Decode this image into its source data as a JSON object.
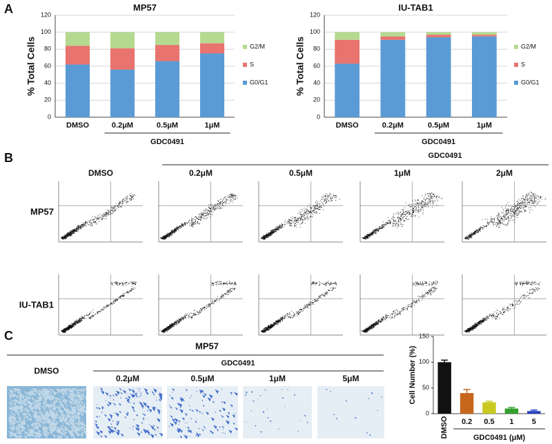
{
  "chart_data": [
    {
      "type": "stacked_bar",
      "title": "MP57",
      "ylabel": "% Total Cells",
      "group_label": "GDC0491",
      "categories": [
        "DMSO",
        "0.2μM",
        "0.5μM",
        "1μM"
      ],
      "series": [
        {
          "name": "G0/G1",
          "color": "#5b9bd5",
          "values": [
            62,
            56,
            66,
            75
          ]
        },
        {
          "name": "S",
          "color": "#e8736f",
          "values": [
            22,
            25,
            19,
            12
          ]
        },
        {
          "name": "G2/M",
          "color": "#b5d98f",
          "values": [
            16,
            19,
            15,
            13
          ]
        }
      ],
      "ylim": [
        0,
        120
      ],
      "yticks": [
        0,
        20,
        40,
        60,
        80,
        100,
        120
      ],
      "grid": true
    },
    {
      "type": "stacked_bar",
      "title": "IU-TAB1",
      "ylabel": "% Total Cells",
      "group_label": "GDC0491",
      "categories": [
        "DMSO",
        "0.2μM",
        "0.5μM",
        "1μM"
      ],
      "series": [
        {
          "name": "G0/G1",
          "color": "#5b9bd5",
          "values": [
            63,
            91,
            94,
            95
          ]
        },
        {
          "name": "S",
          "color": "#e8736f",
          "values": [
            28,
            4,
            3,
            2
          ]
        },
        {
          "name": "G2/M",
          "color": "#b5d98f",
          "values": [
            9,
            5,
            3,
            3
          ]
        }
      ],
      "ylim": [
        0,
        120
      ],
      "yticks": [
        0,
        20,
        40,
        60,
        80,
        100,
        120
      ],
      "grid": true
    },
    {
      "type": "bar",
      "ylabel": "Cell Number (%)",
      "xlabel": "GDC0491 (μM)",
      "categories": [
        "DMSO",
        "0.2",
        "0.5",
        "1",
        "5"
      ],
      "values": [
        100,
        40,
        22,
        10,
        5
      ],
      "errors": [
        4,
        7,
        2,
        2,
        2
      ],
      "colors": [
        "#111111",
        "#c8661c",
        "#c9c922",
        "#33a02c",
        "#2340c0"
      ],
      "ylim": [
        0,
        150
      ],
      "yticks": [
        0,
        50,
        100,
        150
      ],
      "grid": false
    }
  ],
  "panel_labels": [
    "A",
    "B",
    "C"
  ],
  "panel_b": {
    "treatment": "GDC0491",
    "columns": [
      "DMSO",
      "0.2μM",
      "0.5μM",
      "1μM",
      "2μM"
    ],
    "rows": [
      "MP57",
      "IU-TAB1"
    ]
  },
  "panel_c": {
    "title": "MP57",
    "treatment": "GDC0491",
    "columns": [
      "DMSO",
      "0.2μM",
      "0.5μM",
      "1μM",
      "5μM"
    ]
  }
}
